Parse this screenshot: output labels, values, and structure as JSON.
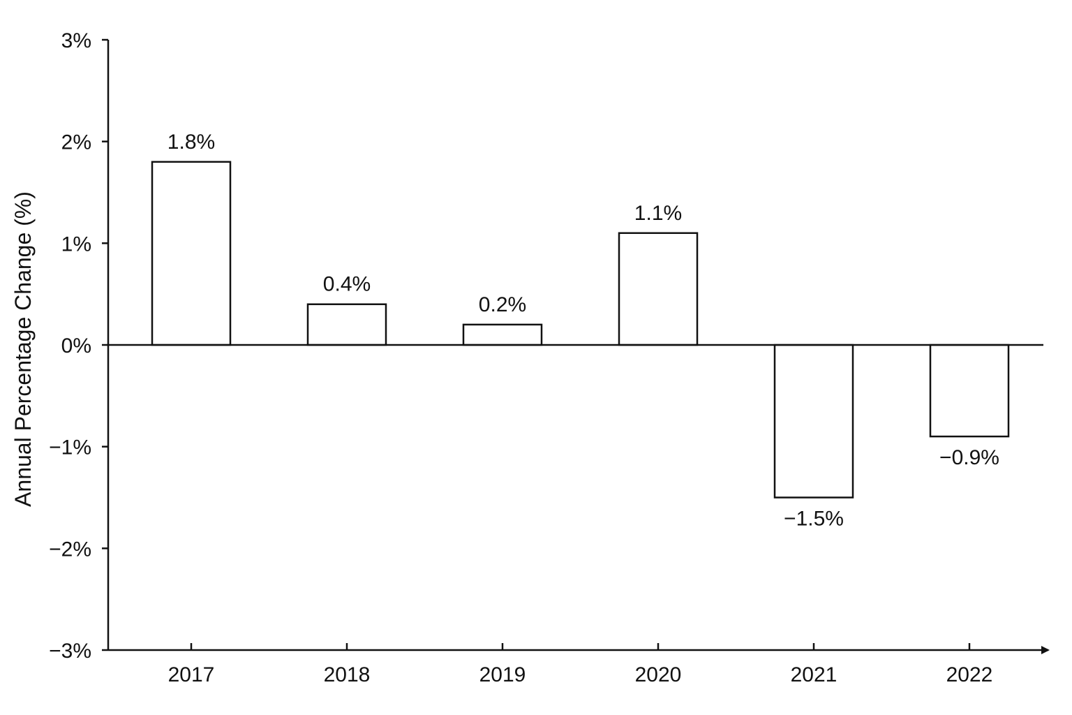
{
  "chart_data": {
    "type": "bar",
    "title": "",
    "xlabel": "",
    "ylabel": "Annual Percentage Change (%)",
    "categories": [
      "2017",
      "2018",
      "2019",
      "2020",
      "2021",
      "2022"
    ],
    "values": [
      1.8,
      0.4,
      0.2,
      1.1,
      -1.5,
      -0.9
    ],
    "data_labels": [
      "1.8%",
      "0.4%",
      "0.2%",
      "1.1%",
      "−1.5%",
      "−0.9%"
    ],
    "ylim": [
      -3,
      3
    ],
    "y_ticks": [
      3,
      2,
      1,
      0,
      -1,
      -2,
      -3
    ],
    "y_tick_labels": [
      "3%",
      "2%",
      "1%",
      "0%",
      "−1%",
      "−2%",
      "−3%"
    ],
    "grid": false,
    "legend": "none",
    "colors": {
      "bar_fill": "#ffffff",
      "bar_stroke": "#111111",
      "axis": "#111111"
    }
  }
}
